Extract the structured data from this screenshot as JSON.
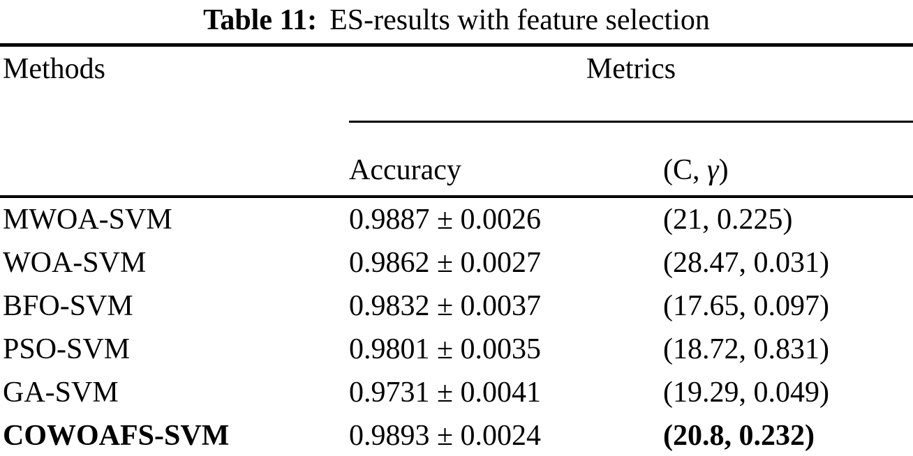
{
  "caption": {
    "label": "Table 11:",
    "text": "ES-results with feature selection"
  },
  "header": {
    "methods": "Methods",
    "metrics": "Metrics",
    "accuracy": "Accuracy",
    "c_gamma_prefix": "(C, ",
    "c_gamma_symbol": "γ",
    "c_gamma_suffix": ")"
  },
  "rows": [
    {
      "method": "MWOA-SVM",
      "accuracy": "0.9887 ± 0.0026",
      "c_gamma": "(21, 0.225)"
    },
    {
      "method": "WOA-SVM",
      "accuracy": "0.9862 ± 0.0027",
      "c_gamma": "(28.47, 0.031)"
    },
    {
      "method": "BFO-SVM",
      "accuracy": "0.9832 ± 0.0037",
      "c_gamma": "(17.65, 0.097)"
    },
    {
      "method": "PSO-SVM",
      "accuracy": "0.9801 ± 0.0035",
      "c_gamma": "(18.72, 0.831)"
    },
    {
      "method": "GA-SVM",
      "accuracy": "0.9731 ± 0.0041",
      "c_gamma": "(19.29, 0.049)"
    },
    {
      "method": "COWOAFS-SVM",
      "accuracy": "0.9893 ± 0.0024",
      "c_gamma": "(20.8, 0.232)"
    }
  ],
  "colors": {
    "text": "#000000",
    "background": "#ffffff",
    "rule": "#000000"
  }
}
